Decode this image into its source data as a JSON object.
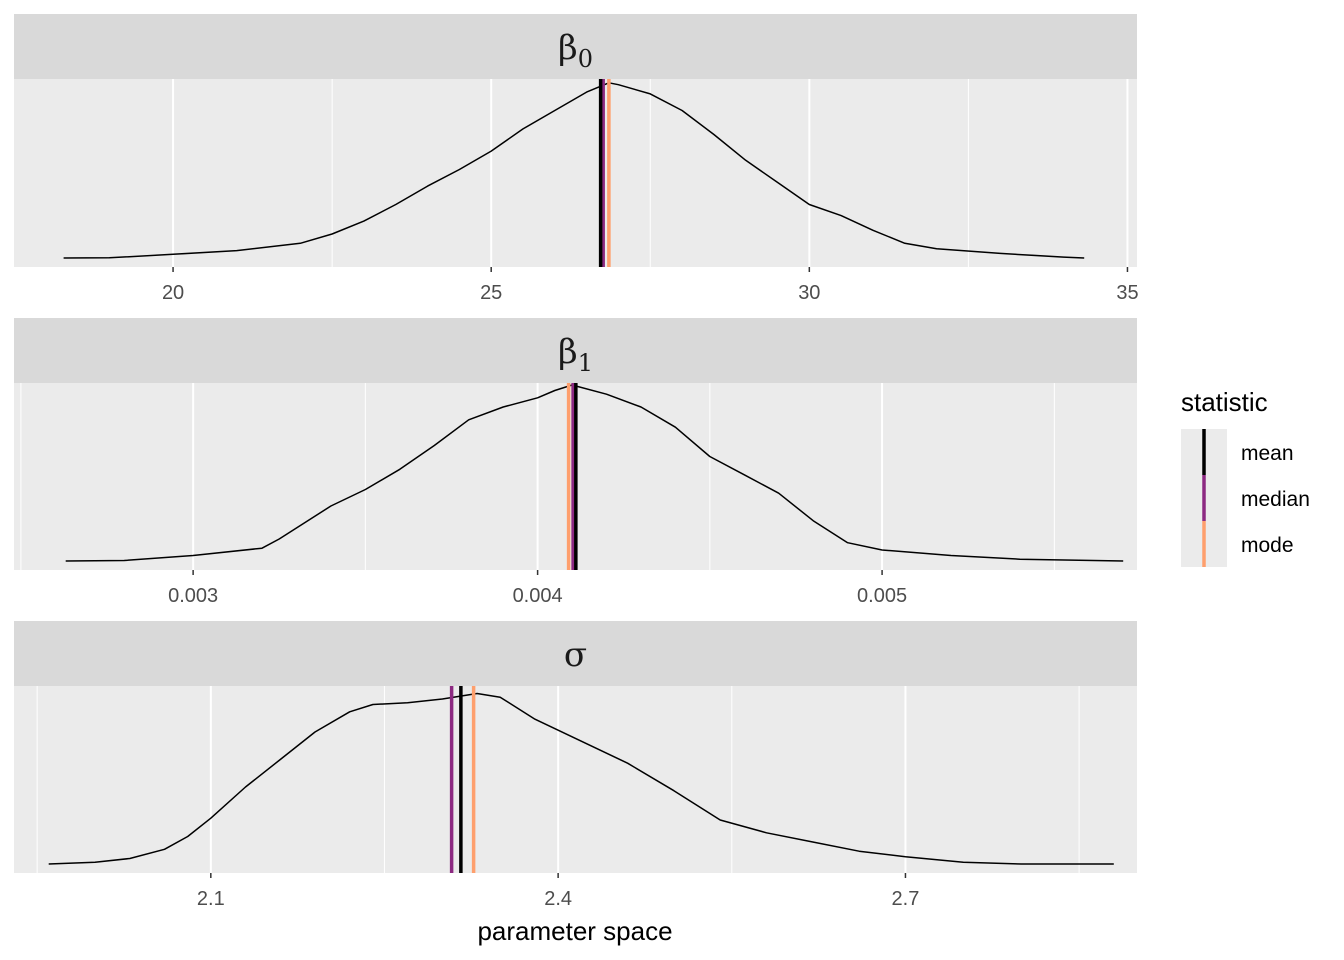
{
  "chart_data": {
    "type": "area",
    "xlabel": "parameter space",
    "legend": {
      "title": "statistic",
      "position": "right",
      "entries": [
        {
          "label": "mean",
          "color": "#000000"
        },
        {
          "label": "median",
          "color": "#8C2981"
        },
        {
          "label": "mode",
          "color": "#FE9F6D"
        }
      ]
    },
    "colors": {
      "panel_bg": "#EBEBEB",
      "strip_bg": "#D9D9D9",
      "grid": "#FFFFFF",
      "density_line": "#000000"
    },
    "facets": [
      {
        "label_main": "β",
        "label_sub": "0",
        "xlim": [
          17.5,
          35.15
        ],
        "breaks": [
          20,
          25,
          30,
          35
        ],
        "tick_labels": [
          "20",
          "25",
          "30",
          "35"
        ],
        "minor_breaks": [
          22.5,
          27.5,
          32.5
        ],
        "mean": 26.72,
        "median": 26.76,
        "mode": 26.85,
        "density": [
          [
            18.28,
            0.0
          ],
          [
            19.0,
            0.001
          ],
          [
            20.0,
            0.02
          ],
          [
            21.0,
            0.04
          ],
          [
            22.0,
            0.08
          ],
          [
            22.5,
            0.13
          ],
          [
            23.0,
            0.2
          ],
          [
            23.5,
            0.29
          ],
          [
            24.0,
            0.39
          ],
          [
            24.5,
            0.48
          ],
          [
            25.0,
            0.58
          ],
          [
            25.5,
            0.7
          ],
          [
            26.0,
            0.8
          ],
          [
            26.5,
            0.9
          ],
          [
            26.85,
            0.95
          ],
          [
            27.0,
            0.94
          ],
          [
            27.5,
            0.89
          ],
          [
            28.0,
            0.8
          ],
          [
            28.5,
            0.67
          ],
          [
            29.0,
            0.53
          ],
          [
            29.5,
            0.41
          ],
          [
            30.0,
            0.29
          ],
          [
            30.5,
            0.23
          ],
          [
            31.0,
            0.15
          ],
          [
            31.5,
            0.08
          ],
          [
            32.0,
            0.05
          ],
          [
            33.0,
            0.025
          ],
          [
            34.0,
            0.005
          ],
          [
            34.32,
            0.0
          ]
        ]
      },
      {
        "label_main": "β",
        "label_sub": "1",
        "xlim": [
          0.00248,
          0.00574
        ],
        "breaks": [
          0.003,
          0.004,
          0.005
        ],
        "tick_labels": [
          "0.003",
          "0.004",
          "0.005"
        ],
        "minor_breaks": [
          0.0025,
          0.0035,
          0.0045,
          0.0055
        ],
        "mean": 0.004111,
        "median": 0.004103,
        "mode": 0.00409,
        "density": [
          [
            0.00263,
            0.0
          ],
          [
            0.0028,
            0.003
          ],
          [
            0.003,
            0.03
          ],
          [
            0.0032,
            0.07
          ],
          [
            0.00325,
            0.12
          ],
          [
            0.0034,
            0.3
          ],
          [
            0.0035,
            0.39
          ],
          [
            0.0036,
            0.5
          ],
          [
            0.0037,
            0.63
          ],
          [
            0.0038,
            0.77
          ],
          [
            0.0039,
            0.84
          ],
          [
            0.004,
            0.89
          ],
          [
            0.00405,
            0.93
          ],
          [
            0.0041,
            0.96
          ],
          [
            0.0042,
            0.91
          ],
          [
            0.0043,
            0.84
          ],
          [
            0.0044,
            0.73
          ],
          [
            0.0045,
            0.57
          ],
          [
            0.0046,
            0.47
          ],
          [
            0.0047,
            0.37
          ],
          [
            0.0048,
            0.22
          ],
          [
            0.0049,
            0.1
          ],
          [
            0.005,
            0.06
          ],
          [
            0.0052,
            0.03
          ],
          [
            0.0054,
            0.01
          ],
          [
            0.0057,
            0.0
          ]
        ]
      },
      {
        "label_main": "σ",
        "label_sub": "",
        "xlim": [
          1.93,
          2.9
        ],
        "breaks": [
          2.1,
          2.4,
          2.7
        ],
        "tick_labels": [
          "2.1",
          "2.4",
          "2.7"
        ],
        "minor_breaks": [
          1.95,
          2.25,
          2.55,
          2.85
        ],
        "mean": 2.316,
        "median": 2.308,
        "mode": 2.327,
        "density": [
          [
            1.96,
            0.0
          ],
          [
            2.0,
            0.01
          ],
          [
            2.03,
            0.03
          ],
          [
            2.06,
            0.08
          ],
          [
            2.08,
            0.15
          ],
          [
            2.1,
            0.25
          ],
          [
            2.13,
            0.42
          ],
          [
            2.16,
            0.57
          ],
          [
            2.19,
            0.72
          ],
          [
            2.22,
            0.83
          ],
          [
            2.24,
            0.87
          ],
          [
            2.27,
            0.88
          ],
          [
            2.3,
            0.9
          ],
          [
            2.33,
            0.93
          ],
          [
            2.35,
            0.91
          ],
          [
            2.38,
            0.79
          ],
          [
            2.42,
            0.67
          ],
          [
            2.46,
            0.55
          ],
          [
            2.5,
            0.4
          ],
          [
            2.54,
            0.24
          ],
          [
            2.58,
            0.17
          ],
          [
            2.62,
            0.12
          ],
          [
            2.66,
            0.07
          ],
          [
            2.7,
            0.04
          ],
          [
            2.75,
            0.01
          ],
          [
            2.8,
            0.0
          ],
          [
            2.88,
            0.0
          ]
        ]
      }
    ]
  }
}
